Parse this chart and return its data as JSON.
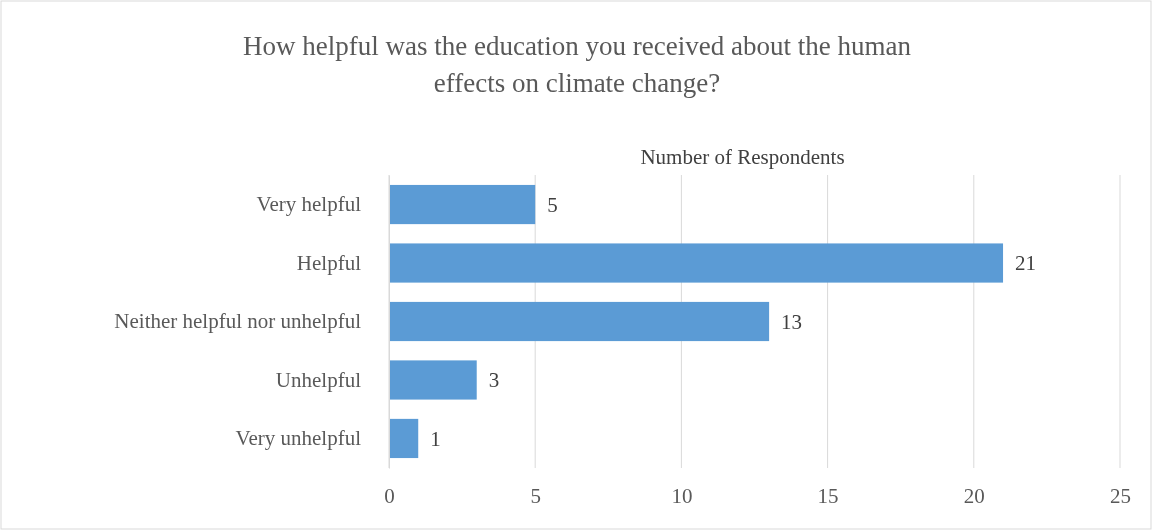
{
  "chart_data": {
    "type": "bar",
    "orientation": "horizontal",
    "title": "How helpful was the education you received about the human effects on climate change?",
    "xlabel": "Number of Respondents",
    "categories": [
      "Very helpful",
      "Helpful",
      "Neither helpful nor unhelpful",
      "Unhelpful",
      "Very unhelpful"
    ],
    "values": [
      5,
      21,
      13,
      3,
      1
    ],
    "color": "#5b9bd5",
    "data_labels": true,
    "xlim": [
      0,
      25
    ],
    "xticks": [
      0,
      5,
      10,
      15,
      20,
      25
    ],
    "grid": "x"
  }
}
